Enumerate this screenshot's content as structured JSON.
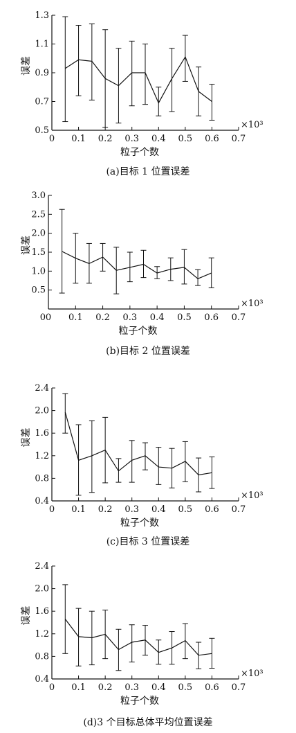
{
  "chart_data": [
    {
      "type": "line",
      "caption": "(a)目标 1 位置误差",
      "xlabel": "粒子个数",
      "ylabel": "误差",
      "x_multiplier": "×10³",
      "xlim": [
        0,
        0.7
      ],
      "ylim": [
        0.5,
        1.3
      ],
      "xticks": [
        "0",
        "0.1",
        "0.2",
        "0.3",
        "0.4",
        "0.5",
        "0.6",
        "0.7"
      ],
      "yticks": [
        "0.5",
        "0.7",
        "0.9",
        "1.1",
        "1.3"
      ],
      "x": [
        0.05,
        0.1,
        0.15,
        0.2,
        0.25,
        0.3,
        0.35,
        0.4,
        0.45,
        0.5,
        0.55,
        0.6
      ],
      "y": [
        0.93,
        0.99,
        0.98,
        0.86,
        0.81,
        0.9,
        0.9,
        0.69,
        0.86,
        1.01,
        0.77,
        0.7
      ],
      "err_low": [
        0.56,
        0.74,
        0.71,
        0.52,
        0.55,
        0.67,
        0.68,
        0.6,
        0.63,
        0.84,
        0.6,
        0.57
      ],
      "err_high": [
        1.29,
        1.23,
        1.24,
        1.2,
        1.07,
        1.12,
        1.1,
        0.8,
        1.07,
        1.16,
        0.94,
        0.82
      ]
    },
    {
      "type": "line",
      "caption": "(b)目标 2 位置误差",
      "xlabel": "粒子个数",
      "ylabel": "误差",
      "x_multiplier": "×10³",
      "xlim": [
        0,
        0.7
      ],
      "ylim": [
        0,
        3.0
      ],
      "xticks": [
        "0",
        "0.1",
        "0.2",
        "0.3",
        "0.4",
        "0.5",
        "0.6",
        "0.7"
      ],
      "yticks": [
        "0.5",
        "1.0",
        "1.5",
        "2.0",
        "2.5",
        "3.0"
      ],
      "x": [
        0.05,
        0.1,
        0.15,
        0.2,
        0.25,
        0.3,
        0.35,
        0.4,
        0.45,
        0.5,
        0.55,
        0.6
      ],
      "y": [
        1.52,
        1.34,
        1.2,
        1.37,
        1.02,
        1.1,
        1.18,
        0.95,
        1.05,
        1.1,
        0.8,
        0.95
      ],
      "err_low": [
        0.42,
        0.68,
        0.68,
        1.0,
        0.4,
        0.72,
        0.83,
        0.8,
        0.75,
        0.66,
        0.62,
        0.56
      ],
      "err_high": [
        2.63,
        2.0,
        1.73,
        1.73,
        1.63,
        1.5,
        1.55,
        1.12,
        1.35,
        1.57,
        1.04,
        1.35
      ]
    },
    {
      "type": "line",
      "caption": "(c)目标 3 位置误差",
      "xlabel": "粒子个数",
      "ylabel": "误差",
      "x_multiplier": "×10³",
      "xlim": [
        0,
        0.7
      ],
      "ylim": [
        0.4,
        2.4
      ],
      "xticks": [
        "0",
        "0.1",
        "0.2",
        "0.3",
        "0.4",
        "0.5",
        "0.6",
        "0.7"
      ],
      "yticks": [
        "0.4",
        "0.8",
        "1.2",
        "1.6",
        "2.0",
        "2.4"
      ],
      "x": [
        0.05,
        0.1,
        0.15,
        0.2,
        0.25,
        0.3,
        0.35,
        0.4,
        0.45,
        0.5,
        0.55,
        0.6
      ],
      "y": [
        1.97,
        1.12,
        1.2,
        1.3,
        0.93,
        1.12,
        1.2,
        1.0,
        0.98,
        1.1,
        0.86,
        0.9
      ],
      "err_low": [
        1.6,
        0.5,
        0.55,
        0.72,
        0.73,
        0.73,
        0.95,
        0.69,
        0.63,
        0.74,
        0.56,
        0.62
      ],
      "err_high": [
        2.3,
        1.75,
        1.82,
        1.88,
        1.15,
        1.47,
        1.43,
        1.35,
        1.33,
        1.45,
        1.16,
        1.18
      ]
    },
    {
      "type": "line",
      "caption": "(d)3 个目标总体平均位置误差",
      "xlabel": "粒子个数",
      "ylabel": "误差",
      "x_multiplier": "×10³",
      "xlim": [
        0,
        0.7
      ],
      "ylim": [
        0.4,
        2.4
      ],
      "xticks": [
        "0",
        "0.1",
        "0.2",
        "0.3",
        "0.4",
        "0.5",
        "0.6",
        "0.7"
      ],
      "yticks": [
        "0.4",
        "0.8",
        "1.2",
        "1.6",
        "2.0",
        "2.4"
      ],
      "x": [
        0.05,
        0.1,
        0.15,
        0.2,
        0.25,
        0.3,
        0.35,
        0.4,
        0.45,
        0.5,
        0.55,
        0.6
      ],
      "y": [
        1.46,
        1.15,
        1.13,
        1.19,
        0.92,
        1.05,
        1.09,
        0.87,
        0.95,
        1.08,
        0.82,
        0.85
      ],
      "err_low": [
        0.85,
        0.63,
        0.65,
        0.76,
        0.55,
        0.7,
        0.82,
        0.66,
        0.66,
        0.76,
        0.58,
        0.59
      ],
      "err_high": [
        2.07,
        1.65,
        1.6,
        1.62,
        1.28,
        1.36,
        1.35,
        1.09,
        1.24,
        1.38,
        1.05,
        1.12
      ]
    }
  ]
}
